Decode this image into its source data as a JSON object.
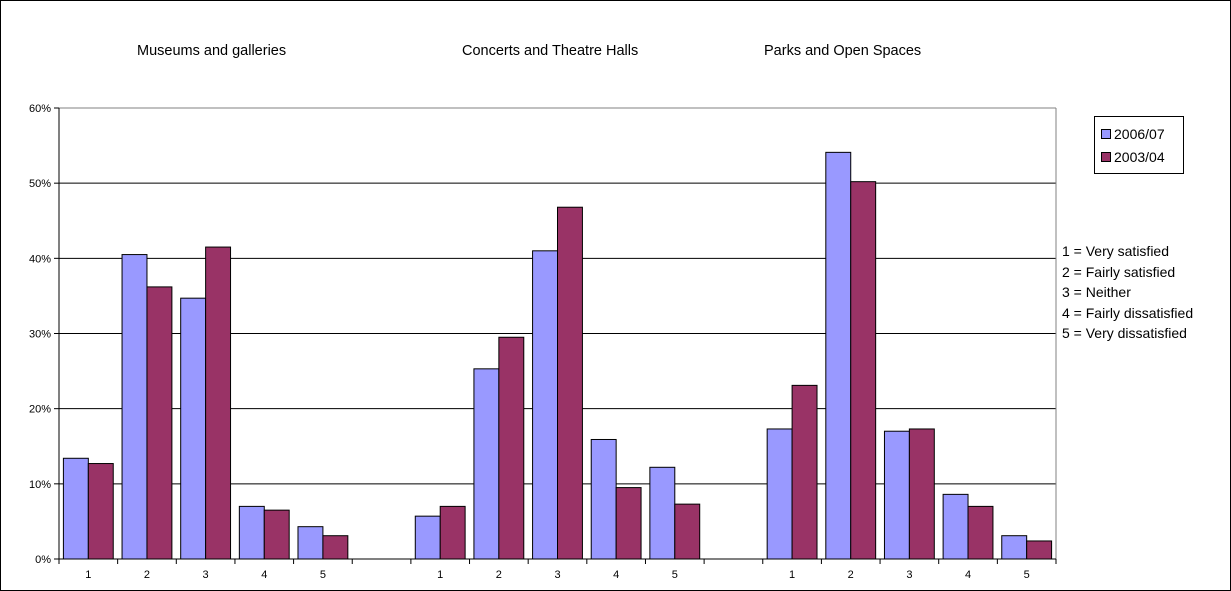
{
  "chart_data": {
    "type": "bar",
    "groups": [
      {
        "title": "Museums and galleries",
        "categories": [
          "1",
          "2",
          "3",
          "4",
          "5"
        ],
        "series": [
          {
            "name": "2006/07",
            "values": [
              13.4,
              40.5,
              34.7,
              7.0,
              4.3
            ]
          },
          {
            "name": "2003/04",
            "values": [
              12.7,
              36.2,
              41.5,
              6.5,
              3.1
            ]
          }
        ]
      },
      {
        "title": "Concerts and Theatre Halls",
        "categories": [
          "1",
          "2",
          "3",
          "4",
          "5"
        ],
        "series": [
          {
            "name": "2006/07",
            "values": [
              5.7,
              25.3,
              41.0,
              15.9,
              12.2
            ]
          },
          {
            "name": "2003/04",
            "values": [
              7.0,
              29.5,
              46.8,
              9.5,
              7.3
            ]
          }
        ]
      },
      {
        "title": "Parks and Open Spaces",
        "categories": [
          "1",
          "2",
          "3",
          "4",
          "5"
        ],
        "series": [
          {
            "name": "2006/07",
            "values": [
              17.3,
              54.1,
              17.0,
              8.6,
              3.1
            ]
          },
          {
            "name": "2003/04",
            "values": [
              23.1,
              50.2,
              17.3,
              7.0,
              2.4
            ]
          }
        ]
      }
    ],
    "y_ticks": [
      "0%",
      "10%",
      "20%",
      "30%",
      "40%",
      "50%",
      "60%"
    ],
    "ylim": [
      0,
      60
    ],
    "grid": true,
    "legend_position": "top-right",
    "series_colors": {
      "2006/07": "#9999ff",
      "2003/04": "#993366"
    },
    "scale_key": [
      "1 = Very satisfied",
      "2 = Fairly satisfied",
      "3 = Neither",
      "4 = Fairly dissatisfied",
      "5 = Very dissatisfied"
    ]
  }
}
